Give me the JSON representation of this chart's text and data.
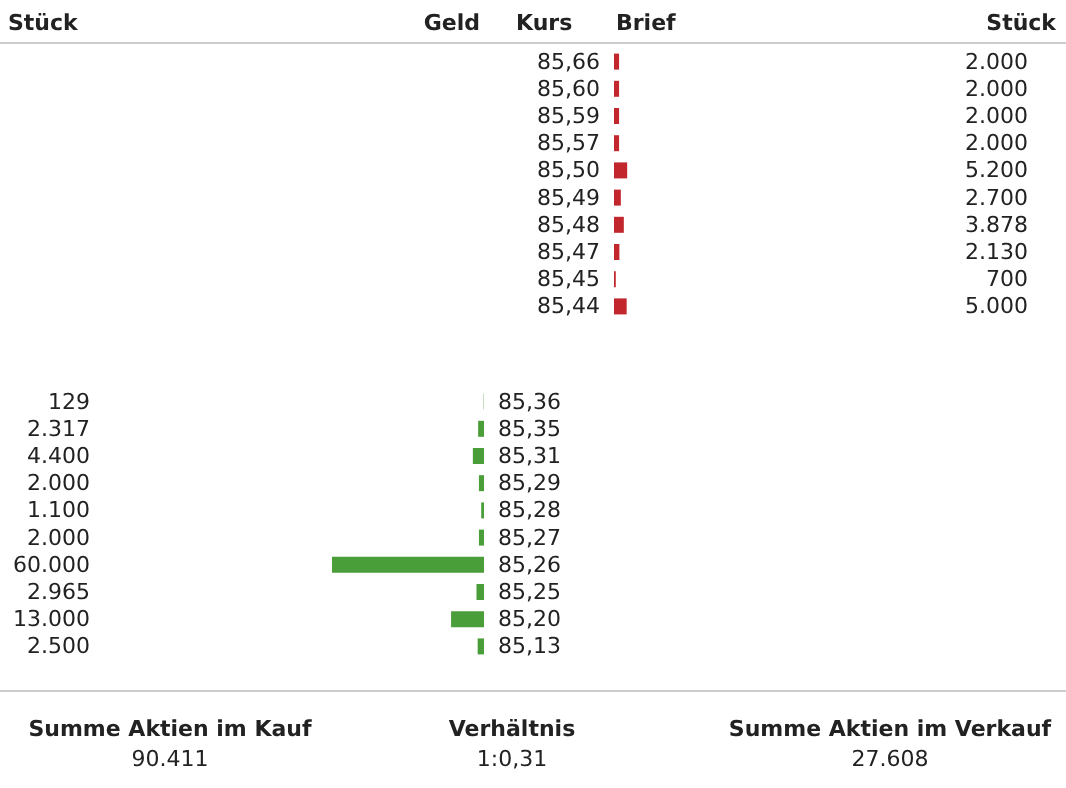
{
  "chart_data": [
    {
      "type": "bar",
      "orientation": "horizontal",
      "color": "#c1272d",
      "annotations": [
        "Stück",
        "Geld",
        "Kurs",
        "Brief",
        "Stück"
      ],
      "categories": [
        "85,66",
        "85,60",
        "85,59",
        "85,57",
        "85,50",
        "85,49",
        "85,48",
        "85,47",
        "85,45",
        "85,44"
      ],
      "values": [
        2000,
        2000,
        2000,
        2000,
        5200,
        2700,
        3878,
        2130,
        700,
        5000
      ],
      "value_labels": [
        "2.000",
        "2.000",
        "2.000",
        "2.000",
        "5.200",
        "2.700",
        "3.878",
        "2.130",
        "700",
        "5.000"
      ]
    },
    {
      "type": "bar",
      "orientation": "horizontal",
      "color": "#4a9e3a",
      "categories": [
        "85,36",
        "85,35",
        "85,31",
        "85,29",
        "85,28",
        "85,27",
        "85,26",
        "85,25",
        "85,20",
        "85,13"
      ],
      "values": [
        129,
        2317,
        4400,
        2000,
        1100,
        2000,
        60000,
        2965,
        13000,
        2500
      ],
      "value_labels": [
        "129",
        "2.317",
        "4.400",
        "2.000",
        "1.100",
        "2.000",
        "60.000",
        "2.965",
        "13.000",
        "2.500"
      ]
    },
    {
      "type": "other",
      "annotations": [
        "Summe Aktien im Kauf",
        "90.411",
        "Verhältnis",
        "1:0,31",
        "Summe Aktien im Verkauf",
        "27.608"
      ]
    }
  ]
}
